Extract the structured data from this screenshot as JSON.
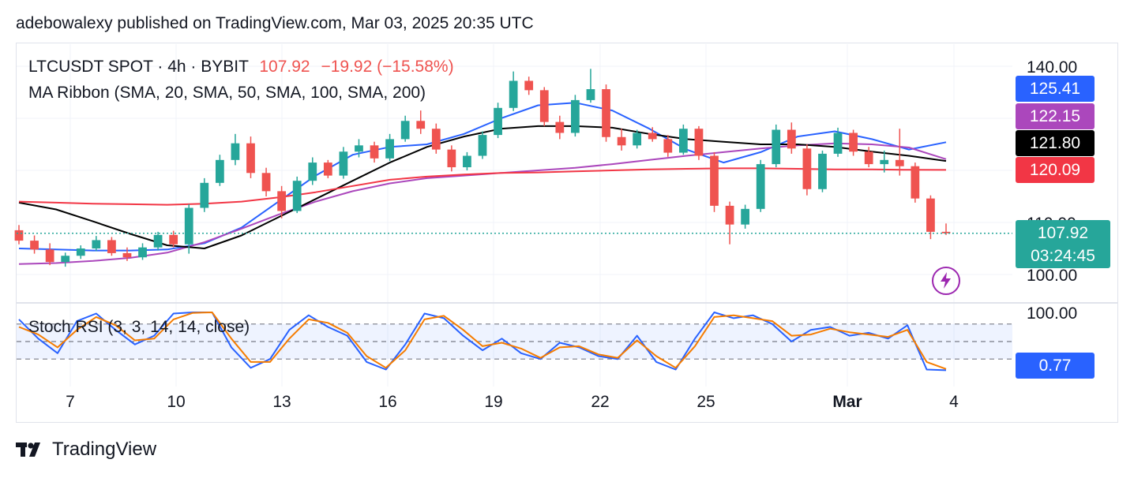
{
  "header": {
    "published_line": "adebowalexy published on TradingView.com, Mar 03, 2025 20:35 UTC"
  },
  "legend": {
    "symbol": "LTCUSDT SPOT · 4h · BYBIT",
    "price": "107.92",
    "change": "−19.92 (−15.58%)",
    "ma_ribbon": "MA Ribbon (SMA, 20, SMA, 50, SMA, 100, SMA, 200)",
    "stoch": "Stoch RSI (3, 3, 14, 14, close)"
  },
  "price_axis": {
    "ticks": [
      "140.00",
      "110.00",
      "100.00"
    ],
    "labels": {
      "sma20": "125.41",
      "sma50": "122.15",
      "sma100": "121.80",
      "sma200": "120.09",
      "last": "107.92",
      "countdown": "03:24:45"
    }
  },
  "stoch_axis": {
    "ticks": [
      "100.00"
    ],
    "value": "0.77"
  },
  "time_axis": {
    "labels": [
      "7",
      "10",
      "13",
      "16",
      "19",
      "22",
      "25",
      "Mar",
      "4"
    ]
  },
  "colors": {
    "up": "#26a69a",
    "down": "#ef5350",
    "sma20": "#2962ff",
    "sma50": "#ab47bc",
    "sma100": "#000000",
    "sma200": "#f23645",
    "k_line": "#2962ff",
    "d_line": "#f57c00",
    "last_price": "#26a69a"
  },
  "brand": {
    "name": "TradingView"
  },
  "chart_data": {
    "type": "candlestick",
    "timeframe": "4h",
    "ylim": [
      95,
      142
    ],
    "x_labels": [
      "7",
      "10",
      "13",
      "16",
      "19",
      "22",
      "25",
      "Mar",
      "4"
    ],
    "last_price": 107.92,
    "candles_sampled_ohlc": [
      [
        108.5,
        109.5,
        105.8,
        106.5
      ],
      [
        106.5,
        107.5,
        104.0,
        104.8
      ],
      [
        104.8,
        106.0,
        101.8,
        102.4
      ],
      [
        102.4,
        104.2,
        101.5,
        103.6
      ],
      [
        103.6,
        105.6,
        103.0,
        105.0
      ],
      [
        105.0,
        107.4,
        104.5,
        106.6
      ],
      [
        106.6,
        107.2,
        103.6,
        104.1
      ],
      [
        104.1,
        105.2,
        102.6,
        103.3
      ],
      [
        103.3,
        106.0,
        102.8,
        105.2
      ],
      [
        105.2,
        108.2,
        104.6,
        107.6
      ],
      [
        107.6,
        108.4,
        105.2,
        105.8
      ],
      [
        105.8,
        113.5,
        104.0,
        112.8
      ],
      [
        112.8,
        118.5,
        112.0,
        117.6
      ],
      [
        117.6,
        123.0,
        117.0,
        122.0
      ],
      [
        122.0,
        127.0,
        121.0,
        125.2
      ],
      [
        125.2,
        126.5,
        118.5,
        119.5
      ],
      [
        119.5,
        120.5,
        115.0,
        116.0
      ],
      [
        116.0,
        117.0,
        110.8,
        112.2
      ],
      [
        112.2,
        118.8,
        111.8,
        118.0
      ],
      [
        118.0,
        122.5,
        117.2,
        121.5
      ],
      [
        121.5,
        122.0,
        118.5,
        119.0
      ],
      [
        119.0,
        124.5,
        118.4,
        123.6
      ],
      [
        123.6,
        126.0,
        122.5,
        124.8
      ],
      [
        124.8,
        125.5,
        121.5,
        122.3
      ],
      [
        122.3,
        127.0,
        121.8,
        126.0
      ],
      [
        126.0,
        130.5,
        125.5,
        129.5
      ],
      [
        129.5,
        131.5,
        127.0,
        128.0
      ],
      [
        128.0,
        129.0,
        123.2,
        124.0
      ],
      [
        124.0,
        124.8,
        119.8,
        120.6
      ],
      [
        120.6,
        123.5,
        120.0,
        122.8
      ],
      [
        122.8,
        127.5,
        122.2,
        126.8
      ],
      [
        126.8,
        133.0,
        126.2,
        132.0
      ],
      [
        132.0,
        139.0,
        131.4,
        137.2
      ],
      [
        137.2,
        138.0,
        134.5,
        135.4
      ],
      [
        135.4,
        136.0,
        128.5,
        129.3
      ],
      [
        129.3,
        130.5,
        126.0,
        127.2
      ],
      [
        127.2,
        134.5,
        126.5,
        133.5
      ],
      [
        133.5,
        139.5,
        133.0,
        135.6
      ],
      [
        135.6,
        136.5,
        125.5,
        126.4
      ],
      [
        126.4,
        128.0,
        123.8,
        124.8
      ],
      [
        124.8,
        127.8,
        124.2,
        127.2
      ],
      [
        127.2,
        128.3,
        125.5,
        126.0
      ],
      [
        126.0,
        126.8,
        122.6,
        123.4
      ],
      [
        123.4,
        128.8,
        123.0,
        128.0
      ],
      [
        128.0,
        128.5,
        122.0,
        122.8
      ],
      [
        122.8,
        123.5,
        112.0,
        113.2
      ],
      [
        113.2,
        114.0,
        105.8,
        109.6
      ],
      [
        109.6,
        113.4,
        108.8,
        112.6
      ],
      [
        112.6,
        122.0,
        112.0,
        121.2
      ],
      [
        121.2,
        128.8,
        120.6,
        127.8
      ],
      [
        127.8,
        129.2,
        123.2,
        124.2
      ],
      [
        124.2,
        125.0,
        115.2,
        116.4
      ],
      [
        116.4,
        123.8,
        115.8,
        123.2
      ],
      [
        123.2,
        128.2,
        122.6,
        127.2
      ],
      [
        127.2,
        127.8,
        122.8,
        123.6
      ],
      [
        123.6,
        124.5,
        120.6,
        121.2
      ],
      [
        121.2,
        123.8,
        119.6,
        122.0
      ],
      [
        122.0,
        128.0,
        119.0,
        120.8
      ],
      [
        120.8,
        121.5,
        113.8,
        114.6
      ],
      [
        114.6,
        115.2,
        106.8,
        108.2
      ],
      [
        108.2,
        109.8,
        107.6,
        107.92
      ]
    ],
    "series": [
      {
        "name": "SMA 20",
        "values": [
          105.0,
          104.8,
          104.6,
          104.6,
          104.8,
          106.0,
          109.0,
          114.0,
          119.0,
          123.0,
          124.5,
          125.0,
          127.0,
          130.0,
          132.5,
          133.0,
          131.5,
          128.0,
          124.0,
          121.5,
          123.5,
          126.5,
          127.5,
          126.0,
          124.0,
          125.41
        ]
      },
      {
        "name": "SMA 50",
        "values": [
          102.0,
          102.2,
          102.6,
          103.2,
          104.2,
          106.2,
          108.8,
          111.5,
          114.0,
          116.0,
          117.5,
          118.5,
          119.0,
          119.5,
          120.0,
          120.5,
          121.2,
          122.0,
          122.8,
          123.5,
          124.2,
          124.8,
          125.2,
          125.0,
          124.4,
          122.15
        ]
      },
      {
        "name": "SMA 100",
        "values": [
          113.8,
          112.5,
          110.2,
          107.8,
          105.6,
          105.0,
          107.5,
          111.0,
          114.5,
          118.0,
          121.5,
          124.5,
          126.5,
          128.0,
          128.5,
          128.5,
          128.2,
          127.0,
          126.0,
          125.5,
          125.0,
          125.0,
          124.5,
          123.6,
          122.8,
          121.8
        ]
      },
      {
        "name": "SMA 200",
        "values": [
          114.0,
          113.8,
          113.6,
          113.5,
          113.4,
          113.6,
          114.0,
          114.8,
          115.8,
          117.0,
          118.2,
          118.8,
          119.2,
          119.5,
          119.6,
          119.8,
          120.0,
          120.2,
          120.3,
          120.4,
          120.4,
          120.3,
          120.2,
          120.2,
          120.1,
          120.09
        ]
      }
    ],
    "stoch_rsi": {
      "ylim": [
        0,
        100
      ],
      "bands": [
        80,
        50,
        20
      ],
      "k": [
        88,
        55,
        30,
        85,
        98,
        70,
        45,
        60,
        98,
        100,
        100,
        40,
        5,
        20,
        70,
        95,
        75,
        60,
        15,
        2,
        45,
        98,
        90,
        60,
        35,
        55,
        30,
        20,
        48,
        40,
        25,
        20,
        60,
        15,
        2,
        55,
        100,
        90,
        95,
        80,
        50,
        70,
        75,
        60,
        65,
        55,
        78,
        2,
        0.77
      ],
      "d": [
        75,
        62,
        40,
        70,
        92,
        78,
        52,
        55,
        88,
        99,
        100,
        55,
        15,
        15,
        55,
        88,
        82,
        65,
        25,
        5,
        35,
        88,
        94,
        70,
        42,
        48,
        38,
        22,
        40,
        42,
        28,
        22,
        52,
        25,
        5,
        42,
        92,
        95,
        90,
        85,
        60,
        62,
        72,
        66,
        62,
        58,
        70,
        15,
        3
      ]
    }
  }
}
